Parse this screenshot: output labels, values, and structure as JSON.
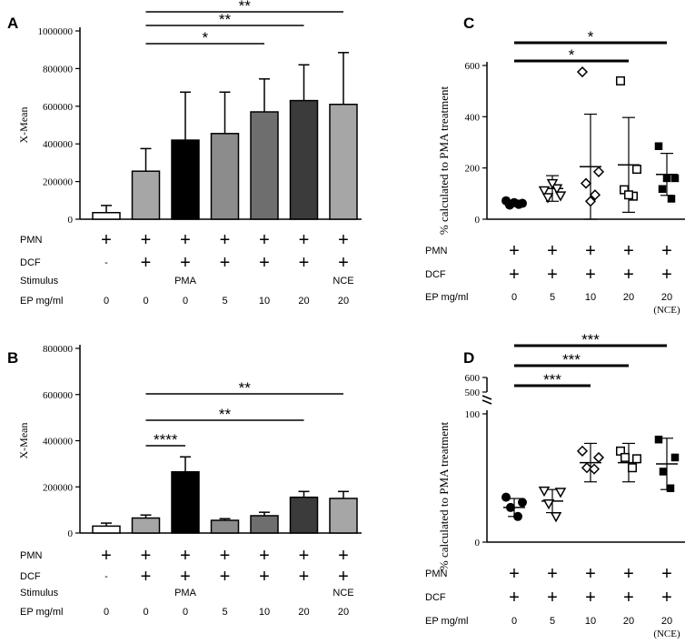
{
  "figure": {
    "panel_letters": [
      "A",
      "B",
      "C",
      "D"
    ],
    "plus_sign": "+",
    "minus_sign": "-"
  },
  "colors": {
    "black": "#000000",
    "white": "#ffffff",
    "light_grey": "#a6a6a6",
    "mid_grey": "#8c8c8c",
    "dark_grey": "#6e6e6e",
    "darker_grey": "#555555",
    "darkest_grey": "#3b3b3b"
  },
  "chart_data": [
    {
      "panel": "A",
      "type": "bar",
      "ylabel": "X-Mean",
      "ylim": [
        0,
        1000000
      ],
      "yticks": [
        0,
        200000,
        400000,
        600000,
        800000,
        1000000
      ],
      "ytick_labels": [
        "0",
        "200000",
        "400000",
        "600000",
        "800000",
        "1000000"
      ],
      "categories": [
        "1",
        "2",
        "3",
        "4",
        "5",
        "6",
        "7"
      ],
      "values": [
        35000,
        255000,
        420000,
        455000,
        570000,
        630000,
        610000
      ],
      "errors": [
        38000,
        120000,
        255000,
        220000,
        175000,
        190000,
        275000
      ],
      "bar_colors": [
        "white",
        "light_grey",
        "black",
        "mid_grey",
        "dark_grey",
        "darkest_grey",
        "light_grey"
      ],
      "rows": [
        {
          "label": "PMN",
          "cells": [
            "+",
            "+",
            "+",
            "+",
            "+",
            "+",
            "+"
          ]
        },
        {
          "label": "DCF",
          "cells": [
            "-",
            "+",
            "+",
            "+",
            "+",
            "+",
            "+"
          ]
        },
        {
          "label": "Stimulus",
          "cells": [
            "",
            "",
            "PMA",
            "",
            "",
            "",
            "NCE"
          ]
        },
        {
          "label": "EP mg/ml",
          "cells": [
            "0",
            "0",
            "0",
            "5",
            "10",
            "20",
            "20"
          ]
        }
      ],
      "significance": [
        {
          "from": 1,
          "to": 6,
          "label": "**"
        },
        {
          "from": 1,
          "to": 5,
          "label": "**"
        },
        {
          "from": 1,
          "to": 4,
          "label": "*"
        }
      ]
    },
    {
      "panel": "B",
      "type": "bar",
      "ylabel": "X-Mean",
      "ylim": [
        0,
        800000
      ],
      "yticks": [
        0,
        200000,
        400000,
        600000,
        800000
      ],
      "ytick_labels": [
        "0",
        "200000",
        "400000",
        "600000",
        "800000"
      ],
      "categories": [
        "1",
        "2",
        "3",
        "4",
        "5",
        "6",
        "7"
      ],
      "values": [
        30000,
        65000,
        265000,
        55000,
        75000,
        155000,
        150000
      ],
      "errors": [
        13000,
        13000,
        65000,
        7000,
        15000,
        25000,
        30000
      ],
      "bar_colors": [
        "white",
        "light_grey",
        "black",
        "mid_grey",
        "dark_grey",
        "darkest_grey",
        "light_grey"
      ],
      "rows": [
        {
          "label": "PMN",
          "cells": [
            "+",
            "+",
            "+",
            "+",
            "+",
            "+",
            "+"
          ]
        },
        {
          "label": "DCF",
          "cells": [
            "-",
            "+",
            "+",
            "+",
            "+",
            "+",
            "+"
          ]
        },
        {
          "label": "Stimulus",
          "cells": [
            "",
            "",
            "PMA",
            "",
            "",
            "",
            "NCE"
          ]
        },
        {
          "label": "EP mg/ml",
          "cells": [
            "0",
            "0",
            "0",
            "5",
            "10",
            "20",
            "20"
          ]
        }
      ],
      "significance": [
        {
          "from": 1,
          "to": 6,
          "label": "**"
        },
        {
          "from": 1,
          "to": 5,
          "label": "**"
        },
        {
          "from": 1,
          "to": 2,
          "label": "****"
        }
      ]
    },
    {
      "panel": "C",
      "type": "scatter",
      "ylabel": "% calculated to PMA treatment",
      "ylim": [
        0,
        600
      ],
      "yticks": [
        0,
        200,
        400,
        600
      ],
      "ytick_labels": [
        "0",
        "200",
        "400",
        "600"
      ],
      "categories": [
        "0",
        "5",
        "10",
        "20",
        "20 (NCE)"
      ],
      "markers": [
        "circle",
        "triangle-open",
        "diamond-open",
        "square-open",
        "square"
      ],
      "points": [
        [
          72,
          62,
          55,
          58,
          65
        ],
        [
          112,
          92,
          85,
          120,
          140
        ],
        [
          575,
          185,
          140,
          95,
          70
        ],
        [
          540,
          195,
          115,
          90,
          95
        ],
        [
          285,
          160,
          118,
          80,
          160
        ]
      ],
      "mean": [
        62,
        120,
        205,
        212,
        175
      ],
      "sd": [
        12,
        50,
        205,
        185,
        82
      ],
      "rows": [
        {
          "label": "PMN",
          "cells": [
            "+",
            "+",
            "+",
            "+",
            "+"
          ]
        },
        {
          "label": "DCF",
          "cells": [
            "+",
            "+",
            "+",
            "+",
            "+"
          ]
        },
        {
          "label": "EP mg/ml",
          "cells": [
            "0",
            "5",
            "10",
            "20",
            "20"
          ]
        }
      ],
      "extra_tick_label": "(NCE)",
      "significance": [
        {
          "from": 0,
          "to": 4,
          "label": "*"
        },
        {
          "from": 0,
          "to": 3,
          "label": "*"
        }
      ]
    },
    {
      "panel": "D",
      "type": "scatter",
      "ylabel": "% calculated to PMA treatment",
      "ylim": [
        0,
        100
      ],
      "yticks": [
        0,
        100
      ],
      "ytick_labels": [
        "0",
        "100"
      ],
      "broken_axis_labels": [
        "500",
        "600"
      ],
      "categories": [
        "0",
        "5",
        "10",
        "20",
        "20 (NCE)"
      ],
      "markers": [
        "circle",
        "triangle-open",
        "diamond-open",
        "square-open",
        "square"
      ],
      "points": [
        [
          35,
          31,
          27,
          20
        ],
        [
          40,
          39,
          30,
          20
        ],
        [
          71,
          66,
          58,
          57
        ],
        [
          71,
          65,
          66,
          58
        ],
        [
          80,
          66,
          55,
          42
        ]
      ],
      "mean": [
        27,
        32,
        62,
        62,
        61
      ],
      "sd": [
        7,
        9,
        15,
        15,
        20
      ],
      "rows": [
        {
          "label": "PMN",
          "cells": [
            "+",
            "+",
            "+",
            "+",
            "+"
          ]
        },
        {
          "label": "DCF",
          "cells": [
            "+",
            "+",
            "+",
            "+",
            "+"
          ]
        },
        {
          "label": "EP mg/ml",
          "cells": [
            "0",
            "5",
            "10",
            "20",
            "20"
          ]
        }
      ],
      "extra_tick_label": "(NCE)",
      "significance": [
        {
          "from": 0,
          "to": 4,
          "label": "***"
        },
        {
          "from": 0,
          "to": 3,
          "label": "***"
        },
        {
          "from": 0,
          "to": 2,
          "label": "***"
        }
      ]
    }
  ]
}
